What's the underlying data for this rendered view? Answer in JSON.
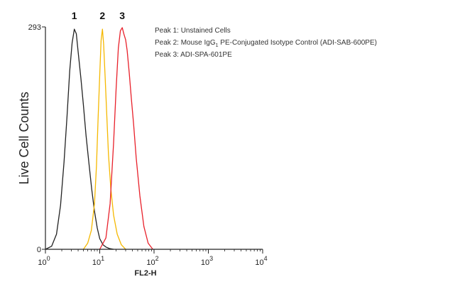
{
  "chart_data": {
    "type": "line",
    "xlabel": "FL2-H",
    "ylabel": "Live Cell Counts",
    "x_scale": "log",
    "xlim": [
      1,
      10000
    ],
    "ylim": [
      0,
      293
    ],
    "x_ticks": [
      {
        "value": 1,
        "base": "10",
        "exp": "0"
      },
      {
        "value": 10,
        "base": "10",
        "exp": "1"
      },
      {
        "value": 100,
        "base": "10",
        "exp": "2"
      },
      {
        "value": 1000,
        "base": "10",
        "exp": "3"
      },
      {
        "value": 10000,
        "base": "10",
        "exp": "4"
      }
    ],
    "y_ticks": [
      {
        "value": 0,
        "label": "0"
      },
      {
        "value": 293,
        "label": "293"
      }
    ],
    "legend": [
      {
        "prefix": "Peak 1: Unstained Cells",
        "sub": "",
        "suffix": ""
      },
      {
        "prefix": "Peak 2: Mouse IgG",
        "sub": "1",
        "suffix": " PE-Conjugated Isotype Control (ADI-SAB-600PE)"
      },
      {
        "prefix": "Peak 3: ADI-SPA-601PE",
        "sub": "",
        "suffix": ""
      }
    ],
    "series": [
      {
        "name": "1",
        "color": "#222222",
        "x": [
          1.0,
          1.3,
          1.6,
          1.9,
          2.2,
          2.5,
          2.8,
          3.1,
          3.4,
          3.7,
          4.0,
          4.5,
          5.0,
          5.6,
          6.3,
          7.1,
          8.0,
          9.0,
          10.0,
          11.5,
          13.0,
          15.0,
          18.0
        ],
        "y": [
          0,
          4,
          20,
          58,
          115,
          175,
          235,
          272,
          290,
          284,
          260,
          225,
          190,
          150,
          115,
          80,
          50,
          28,
          14,
          6,
          3,
          1,
          0
        ]
      },
      {
        "name": "2",
        "color": "#f5b800",
        "x": [
          5.0,
          6.0,
          7.0,
          8.0,
          8.7,
          9.3,
          10.0,
          10.6,
          11.2,
          11.8,
          12.6,
          13.5,
          14.5,
          16.0,
          18.0,
          21.0,
          25.0,
          30.0
        ],
        "y": [
          0,
          8,
          25,
          60,
          110,
          170,
          230,
          275,
          290,
          270,
          225,
          175,
          125,
          80,
          45,
          20,
          6,
          0
        ]
      },
      {
        "name": "3",
        "color": "#e8202a",
        "x": [
          10.0,
          13.0,
          15.5,
          18.0,
          20.0,
          22.0,
          24.0,
          26.0,
          28.0,
          30.0,
          32.0,
          35.0,
          38.0,
          42.0,
          47.0,
          55.0,
          65.0,
          78.0,
          95.0
        ],
        "y": [
          0,
          15,
          60,
          140,
          210,
          265,
          288,
          292,
          283,
          276,
          262,
          232,
          200,
          165,
          120,
          70,
          30,
          8,
          0
        ]
      }
    ]
  }
}
